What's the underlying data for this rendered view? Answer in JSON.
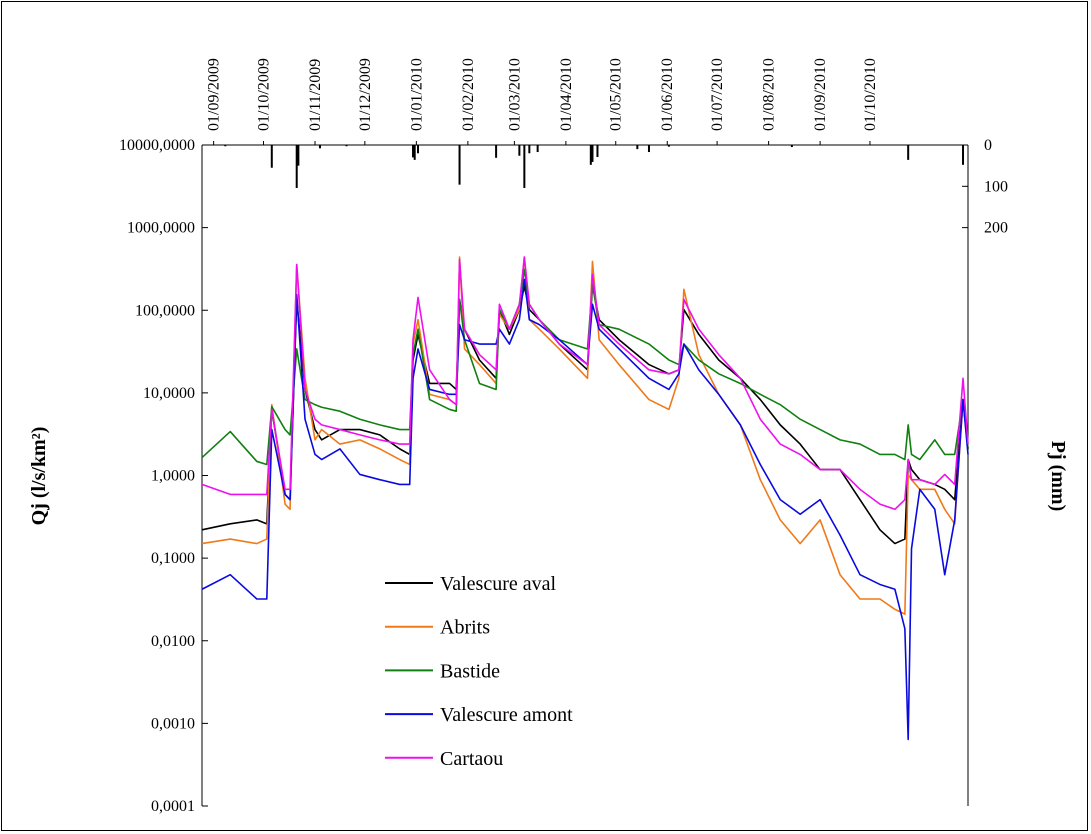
{
  "chart_data": {
    "type": "line",
    "ylabel": "Qj (l/s/km²)",
    "y2label": "Pj (mm)",
    "log_scale": true,
    "legend": "lower-center",
    "xlim": [
      "25/08/2009",
      "29/11/2010"
    ],
    "xticks": [
      "01/09/2009",
      "01/10/2009",
      "01/11/2009",
      "01/12/2009",
      "01/01/2010",
      "01/02/2010",
      "01/03/2010",
      "01/04/2010",
      "01/05/2010",
      "01/06/2010",
      "01/07/2010",
      "01/08/2010",
      "01/09/2010",
      "01/10/2010"
    ],
    "ylim": [
      0.0001,
      10000
    ],
    "yticks": [
      {
        "value": 10000,
        "label": "10000,0000"
      },
      {
        "value": 1000,
        "label": "1000,0000"
      },
      {
        "value": 100,
        "label": "100,0000"
      },
      {
        "value": 10,
        "label": "10,0000"
      },
      {
        "value": 1,
        "label": "1,0000"
      },
      {
        "value": 0.1,
        "label": "0,1000"
      },
      {
        "value": 0.01,
        "label": "0,0100"
      },
      {
        "value": 0.001,
        "label": "0,0010"
      },
      {
        "value": 0.0001,
        "label": "0,0001"
      }
    ],
    "y2lim": [
      0,
      1600
    ],
    "y2_inverted": true,
    "y2ticks": [
      0,
      100,
      200
    ],
    "x": [
      "25/08/2009",
      "11/09/2009",
      "27/09/2009",
      "03/10/2009",
      "06/10/2009",
      "14/10/2009",
      "17/10/2009",
      "21/10/2009",
      "26/10/2009",
      "01/11/2009",
      "05/11/2009",
      "16/11/2009",
      "28/11/2009",
      "10/12/2009",
      "22/12/2009",
      "28/12/2009",
      "30/12/2009",
      "02/01/2010",
      "09/01/2010",
      "21/01/2010",
      "25/01/2010",
      "27/01/2010",
      "30/01/2010",
      "08/02/2010",
      "18/02/2010",
      "20/02/2010",
      "26/02/2010",
      "04/03/2010",
      "07/03/2010",
      "10/03/2010",
      "16/03/2010",
      "28/03/2010",
      "14/04/2010",
      "17/04/2010",
      "21/04/2010",
      "03/05/2010",
      "21/05/2010",
      "02/06/2010",
      "08/06/2010",
      "11/06/2010",
      "20/06/2010",
      "02/07/2010",
      "15/07/2010",
      "27/07/2010",
      "08/08/2010",
      "20/08/2010",
      "01/09/2010",
      "13/09/2010",
      "25/09/2010",
      "07/10/2010",
      "16/10/2010",
      "22/10/2010",
      "24/10/2010",
      "26/10/2010",
      "31/10/2010",
      "09/11/2010",
      "15/11/2010",
      "21/11/2010",
      "26/11/2010",
      "29/11/2010"
    ],
    "series": [
      {
        "name": "Valescure aval",
        "color": "#000000",
        "values": [
          0.22,
          0.26,
          0.29,
          0.26,
          6.3,
          0.59,
          0.51,
          135,
          11,
          3.6,
          2.7,
          3.6,
          3.6,
          3.1,
          2.1,
          1.8,
          25,
          51,
          13,
          13,
          11,
          135,
          59,
          25,
          15,
          102,
          51,
          102,
          194,
          102,
          77,
          39,
          19,
          205,
          77,
          44,
          22,
          17,
          19,
          102,
          51,
          25,
          15,
          8.3,
          4.1,
          2.4,
          1.18,
          1.18,
          0.51,
          0.22,
          0.15,
          0.17,
          1.56,
          1.18,
          0.89,
          0.78,
          0.68,
          0.51,
          8.3,
          2.1
        ]
      },
      {
        "name": "Abrits",
        "color": "#f07a1a",
        "values": [
          0.15,
          0.17,
          0.15,
          0.17,
          7.2,
          0.45,
          0.39,
          358,
          15,
          2.7,
          3.6,
          2.4,
          2.7,
          2.1,
          1.56,
          1.36,
          39,
          77,
          9.6,
          8.3,
          7.2,
          440,
          34,
          22,
          13,
          89,
          59,
          102,
          440,
          77,
          59,
          34,
          15,
          390,
          44,
          22,
          8.3,
          6.3,
          15,
          179,
          29,
          9.6,
          4.1,
          0.89,
          0.29,
          0.15,
          0.29,
          0.063,
          0.032,
          0.032,
          0.024,
          0.021,
          1.03,
          0.89,
          0.68,
          0.68,
          0.39,
          0.26,
          8.3,
          2.1
        ]
      },
      {
        "name": "Bastide",
        "color": "#108010",
        "values": [
          1.65,
          3.4,
          1.48,
          1.36,
          6.8,
          3.6,
          3.1,
          34,
          8.3,
          7.2,
          6.7,
          6.0,
          4.8,
          4.1,
          3.6,
          3.6,
          29,
          59,
          8.3,
          6.3,
          6.0,
          135,
          44,
          13,
          11,
          102,
          59,
          118,
          312,
          118,
          77,
          44,
          34,
          205,
          67,
          59,
          39,
          25,
          22,
          39,
          25,
          17,
          13,
          9.6,
          7.2,
          4.8,
          3.6,
          2.7,
          2.4,
          1.8,
          1.8,
          1.56,
          4.1,
          1.8,
          1.56,
          2.7,
          1.8,
          1.8,
          8.3,
          2.1
        ]
      },
      {
        "name": "Valescure amont",
        "color": "#0a0ae0",
        "values": [
          0.042,
          0.063,
          0.032,
          0.032,
          3.6,
          0.59,
          0.51,
          155,
          4.8,
          1.8,
          1.56,
          2.1,
          1.03,
          0.89,
          0.78,
          0.78,
          15,
          34,
          11,
          9.6,
          9.6,
          67,
          44,
          39,
          39,
          59,
          39,
          77,
          236,
          77,
          67,
          44,
          22,
          118,
          59,
          34,
          15,
          11,
          17,
          39,
          19,
          9.6,
          4.1,
          1.36,
          0.51,
          0.34,
          0.51,
          0.19,
          0.063,
          0.048,
          0.042,
          0.014,
          0.00064,
          0.13,
          0.68,
          0.39,
          0.063,
          0.29,
          8.3,
          1.8
        ]
      },
      {
        "name": "Cartaou",
        "color": "#ee10ee",
        "values": [
          0.78,
          0.59,
          0.59,
          0.59,
          6.3,
          0.68,
          0.68,
          358,
          11,
          4.8,
          4.1,
          3.6,
          3.1,
          2.7,
          2.4,
          2.4,
          44,
          143,
          19,
          8.3,
          7.2,
          412,
          59,
          29,
          19,
          118,
          59,
          118,
          440,
          118,
          77,
          39,
          22,
          271,
          67,
          39,
          19,
          17,
          19,
          135,
          59,
          29,
          15,
          4.8,
          2.4,
          1.8,
          1.18,
          1.18,
          0.68,
          0.45,
          0.39,
          0.51,
          1.56,
          0.89,
          0.89,
          0.78,
          1.03,
          0.78,
          15,
          2.4
        ]
      }
    ],
    "precipitation": {
      "axis": "y2",
      "color": "#000000",
      "x": [
        "08/09/2009",
        "06/10/2009",
        "21/10/2009",
        "22/10/2009",
        "04/11/2009",
        "20/11/2009",
        "30/12/2009",
        "31/12/2009",
        "02/01/2010",
        "27/01/2010",
        "18/02/2010",
        "04/03/2010",
        "07/03/2010",
        "10/03/2010",
        "15/03/2010",
        "16/04/2010",
        "17/04/2010",
        "20/04/2010",
        "14/05/2010",
        "21/05/2010",
        "02/06/2010",
        "15/08/2010",
        "24/10/2010",
        "26/11/2010"
      ],
      "values": [
        3,
        55,
        104,
        50,
        8,
        3,
        30,
        36,
        20,
        96,
        31,
        26,
        104,
        20,
        17,
        48,
        41,
        29,
        10,
        17,
        4,
        5,
        36,
        48
      ]
    }
  }
}
